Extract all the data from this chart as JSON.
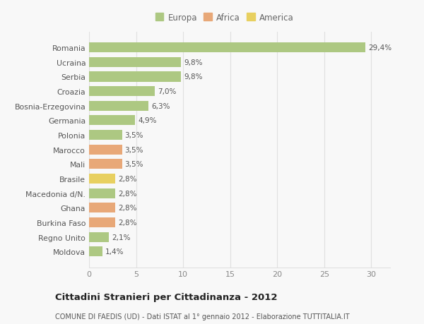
{
  "categories": [
    "Moldova",
    "Regno Unito",
    "Burkina Faso",
    "Ghana",
    "Macedonia d/N.",
    "Brasile",
    "Mali",
    "Marocco",
    "Polonia",
    "Germania",
    "Bosnia-Erzegovina",
    "Croazia",
    "Serbia",
    "Ucraina",
    "Romania"
  ],
  "values": [
    1.4,
    2.1,
    2.8,
    2.8,
    2.8,
    2.8,
    3.5,
    3.5,
    3.5,
    4.9,
    6.3,
    7.0,
    9.8,
    9.8,
    29.4
  ],
  "labels": [
    "1,4%",
    "2,1%",
    "2,8%",
    "2,8%",
    "2,8%",
    "2,8%",
    "3,5%",
    "3,5%",
    "3,5%",
    "4,9%",
    "6,3%",
    "7,0%",
    "9,8%",
    "9,8%",
    "29,4%"
  ],
  "colors": [
    "#adc882",
    "#adc882",
    "#e8a878",
    "#e8a878",
    "#adc882",
    "#e8d060",
    "#e8a878",
    "#e8a878",
    "#adc882",
    "#adc882",
    "#adc882",
    "#adc882",
    "#adc882",
    "#adc882",
    "#adc882"
  ],
  "legend": [
    {
      "label": "Europa",
      "color": "#adc882"
    },
    {
      "label": "Africa",
      "color": "#e8a878"
    },
    {
      "label": "America",
      "color": "#e8d060"
    }
  ],
  "xlim": [
    0,
    32
  ],
  "xticks": [
    0,
    5,
    10,
    15,
    20,
    25,
    30
  ],
  "title": "Cittadini Stranieri per Cittadinanza - 2012",
  "subtitle": "COMUNE DI FAEDIS (UD) - Dati ISTAT al 1° gennaio 2012 - Elaborazione TUTTITALIA.IT",
  "background_color": "#f8f8f8",
  "bar_height": 0.68,
  "grid_color": "#e0e0e0"
}
